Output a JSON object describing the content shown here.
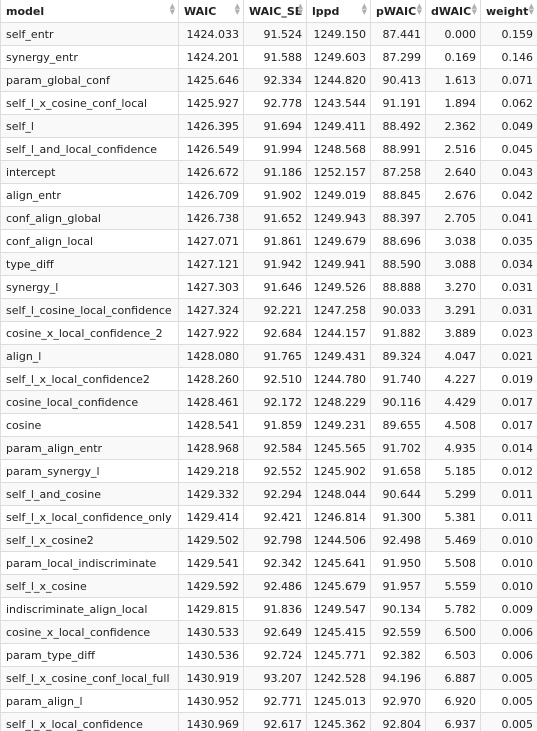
{
  "table": {
    "columns": [
      "model",
      "WAIC",
      "WAIC_SE",
      "lppd",
      "pWAIC",
      "dWAIC",
      "weight"
    ],
    "rows": [
      [
        "self_entr",
        "1424.033",
        "91.524",
        "1249.150",
        "87.441",
        "0.000",
        "0.159"
      ],
      [
        "synergy_entr",
        "1424.201",
        "91.588",
        "1249.603",
        "87.299",
        "0.169",
        "0.146"
      ],
      [
        "param_global_conf",
        "1425.646",
        "92.334",
        "1244.820",
        "90.413",
        "1.613",
        "0.071"
      ],
      [
        "self_l_x_cosine_conf_local",
        "1425.927",
        "92.778",
        "1243.544",
        "91.191",
        "1.894",
        "0.062"
      ],
      [
        "self_l",
        "1426.395",
        "91.694",
        "1249.411",
        "88.492",
        "2.362",
        "0.049"
      ],
      [
        "self_l_and_local_confidence",
        "1426.549",
        "91.994",
        "1248.568",
        "88.991",
        "2.516",
        "0.045"
      ],
      [
        "intercept",
        "1426.672",
        "91.186",
        "1252.157",
        "87.258",
        "2.640",
        "0.043"
      ],
      [
        "align_entr",
        "1426.709",
        "91.902",
        "1249.019",
        "88.845",
        "2.676",
        "0.042"
      ],
      [
        "conf_align_global",
        "1426.738",
        "91.652",
        "1249.943",
        "88.397",
        "2.705",
        "0.041"
      ],
      [
        "conf_align_local",
        "1427.071",
        "91.861",
        "1249.679",
        "88.696",
        "3.038",
        "0.035"
      ],
      [
        "type_diff",
        "1427.121",
        "91.942",
        "1249.941",
        "88.590",
        "3.088",
        "0.034"
      ],
      [
        "synergy_l",
        "1427.303",
        "91.646",
        "1249.526",
        "88.888",
        "3.270",
        "0.031"
      ],
      [
        "self_l_cosine_local_confidence",
        "1427.324",
        "92.221",
        "1247.258",
        "90.033",
        "3.291",
        "0.031"
      ],
      [
        "cosine_x_local_confidence_2",
        "1427.922",
        "92.684",
        "1244.157",
        "91.882",
        "3.889",
        "0.023"
      ],
      [
        "align_l",
        "1428.080",
        "91.765",
        "1249.431",
        "89.324",
        "4.047",
        "0.021"
      ],
      [
        "self_l_x_local_confidence2",
        "1428.260",
        "92.510",
        "1244.780",
        "91.740",
        "4.227",
        "0.019"
      ],
      [
        "cosine_local_confidence",
        "1428.461",
        "92.172",
        "1248.229",
        "90.116",
        "4.429",
        "0.017"
      ],
      [
        "cosine",
        "1428.541",
        "91.859",
        "1249.231",
        "89.655",
        "4.508",
        "0.017"
      ],
      [
        "param_align_entr",
        "1428.968",
        "92.584",
        "1245.565",
        "91.702",
        "4.935",
        "0.014"
      ],
      [
        "param_synergy_l",
        "1429.218",
        "92.552",
        "1245.902",
        "91.658",
        "5.185",
        "0.012"
      ],
      [
        "self_l_and_cosine",
        "1429.332",
        "92.294",
        "1248.044",
        "90.644",
        "5.299",
        "0.011"
      ],
      [
        "self_l_x_local_confidence_only",
        "1429.414",
        "92.421",
        "1246.814",
        "91.300",
        "5.381",
        "0.011"
      ],
      [
        "self_l_x_cosine2",
        "1429.502",
        "92.798",
        "1244.506",
        "92.498",
        "5.469",
        "0.010"
      ],
      [
        "param_local_indiscriminate",
        "1429.541",
        "92.342",
        "1245.641",
        "91.950",
        "5.508",
        "0.010"
      ],
      [
        "self_l_x_cosine",
        "1429.592",
        "92.486",
        "1245.679",
        "91.957",
        "5.559",
        "0.010"
      ],
      [
        "indiscriminate_align_local",
        "1429.815",
        "91.836",
        "1249.547",
        "90.134",
        "5.782",
        "0.009"
      ],
      [
        "cosine_x_local_confidence",
        "1430.533",
        "92.649",
        "1245.415",
        "92.559",
        "6.500",
        "0.006"
      ],
      [
        "param_type_diff",
        "1430.536",
        "92.724",
        "1245.771",
        "92.382",
        "6.503",
        "0.006"
      ],
      [
        "self_l_x_cosine_conf_local_full",
        "1430.919",
        "93.207",
        "1242.528",
        "94.196",
        "6.887",
        "0.005"
      ],
      [
        "param_align_l",
        "1430.952",
        "92.771",
        "1245.013",
        "92.970",
        "6.920",
        "0.005"
      ],
      [
        "self_l_x_local_confidence",
        "1430.969",
        "92.617",
        "1245.362",
        "92.804",
        "6.937",
        "0.005"
      ]
    ]
  },
  "icons": {
    "sort": "sort-arrows-icon",
    "sort_up_glyph": "▲",
    "sort_down_glyph": "▼"
  },
  "colors": {
    "row_striped": "#f9f9f9",
    "row_plain": "#ffffff",
    "border": "#dddddd",
    "sort_icon": "#b0b0b0"
  }
}
